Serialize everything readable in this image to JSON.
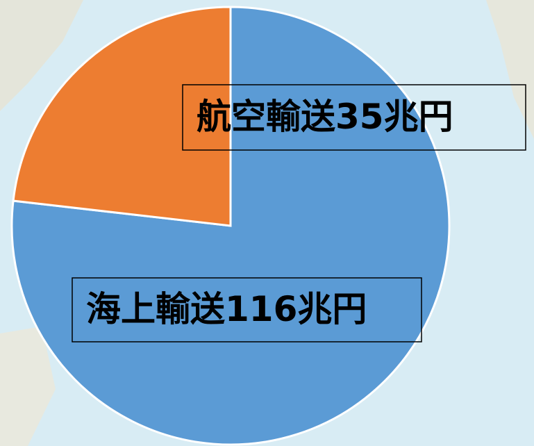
{
  "chart_data": {
    "type": "pie",
    "categories": [
      "海上輸送",
      "航空輸送"
    ],
    "values": [
      116,
      35
    ],
    "value_labels": [
      "116兆円",
      "35兆円"
    ],
    "colors": [
      "#5b9bd5",
      "#ed7d31"
    ]
  }
}
